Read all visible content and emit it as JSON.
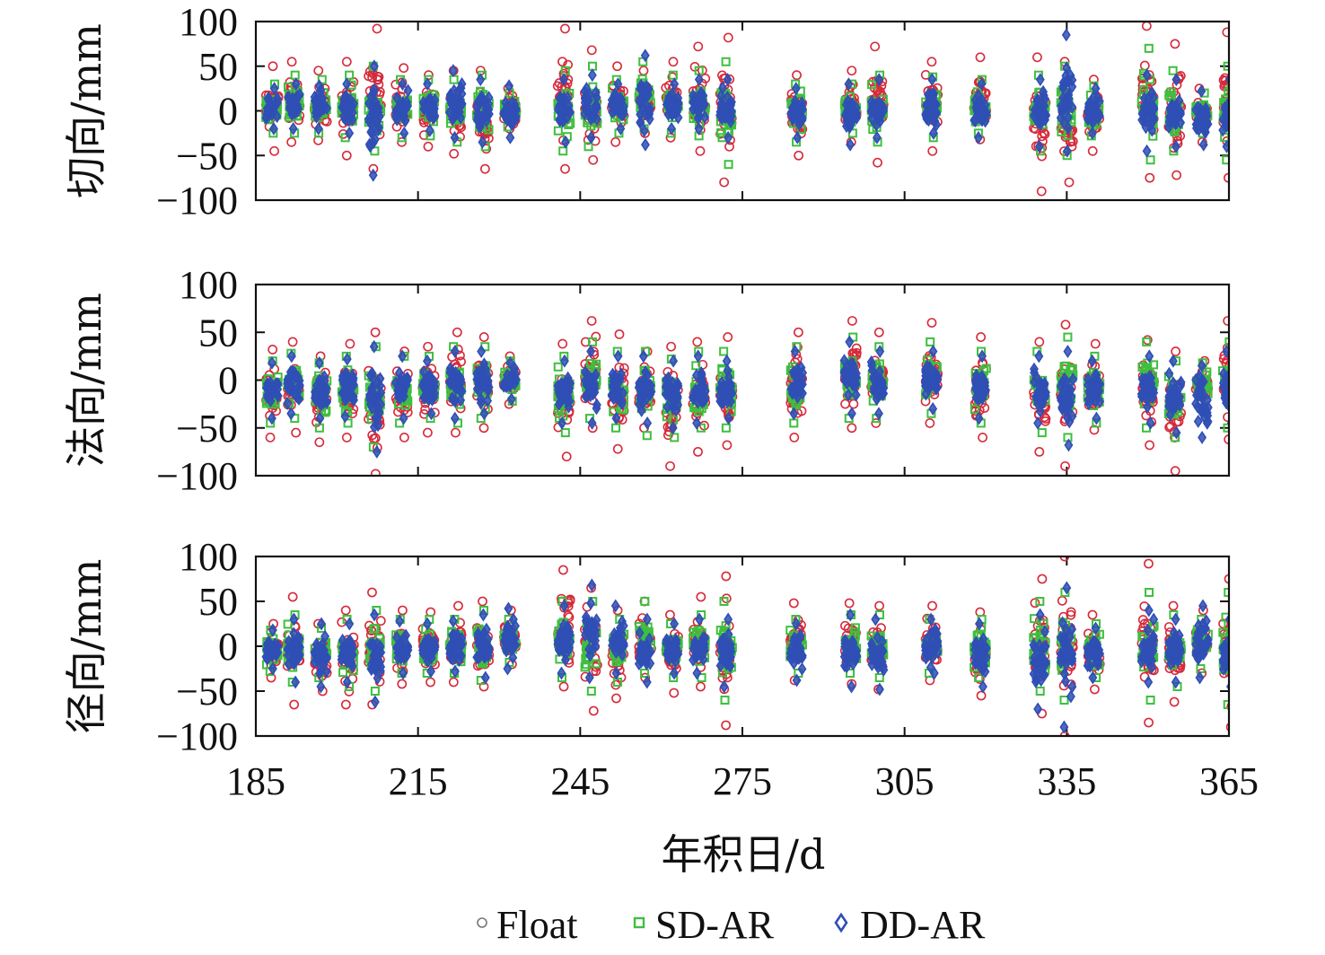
{
  "chart_data": {
    "type": "scatter",
    "xlabel": "年积日/d",
    "xlim": [
      185,
      365
    ],
    "xticks": [
      185,
      215,
      245,
      275,
      305,
      335,
      365
    ],
    "legend": {
      "placement": "bottom",
      "entries": [
        {
          "name": "Float",
          "marker": "circle",
          "color": "#d62a3a"
        },
        {
          "name": "SD-AR",
          "marker": "square",
          "color": "#3fbf3f"
        },
        {
          "name": "DD-AR",
          "marker": "diamond",
          "color": "#2f4fb5"
        }
      ]
    },
    "panels": [
      {
        "ylabel": "切向/mm",
        "ylim": [
          -100,
          100
        ],
        "yticks": [
          -100,
          -50,
          0,
          50,
          100
        ],
        "days": [
          188,
          192,
          197,
          202,
          207,
          212,
          217,
          222,
          227,
          232,
          242,
          247,
          252,
          257,
          262,
          267,
          272,
          285,
          295,
          300,
          310,
          319,
          330,
          335,
          340,
          350,
          355,
          360,
          365
        ],
        "series": [
          {
            "name": "Float",
            "color": "#d62a3a",
            "min": [
              -45,
              -35,
              -33,
              -50,
              -65,
              -35,
              -40,
              -48,
              -65,
              -20,
              -65,
              -55,
              -35,
              -25,
              -30,
              -45,
              -80,
              -50,
              -35,
              -58,
              -45,
              -32,
              -90,
              -80,
              -45,
              -75,
              -72,
              -35,
              -75
            ],
            "max": [
              50,
              55,
              45,
              55,
              92,
              48,
              40,
              45,
              45,
              25,
              92,
              68,
              50,
              45,
              55,
              72,
              82,
              40,
              45,
              72,
              55,
              60,
              60,
              55,
              35,
              95,
              75,
              25,
              88
            ]
          },
          {
            "name": "SD-AR",
            "color": "#3fbf3f",
            "min": [
              -25,
              -25,
              -25,
              -30,
              -45,
              -30,
              -28,
              -35,
              -40,
              -18,
              -45,
              -40,
              -25,
              -20,
              -25,
              -28,
              -60,
              -35,
              -25,
              -35,
              -30,
              -25,
              -45,
              -50,
              -28,
              -55,
              -45,
              -25,
              -55
            ],
            "max": [
              30,
              40,
              35,
              40,
              50,
              35,
              35,
              35,
              40,
              20,
              45,
              50,
              35,
              55,
              40,
              45,
              55,
              30,
              30,
              40,
              38,
              35,
              40,
              50,
              28,
              70,
              45,
              20,
              50
            ]
          },
          {
            "name": "DD-AR",
            "color": "#2f4fb5",
            "min": [
              -20,
              -20,
              -20,
              -25,
              -72,
              -25,
              -22,
              -30,
              -35,
              -30,
              -35,
              -30,
              -20,
              -38,
              -20,
              -20,
              -30,
              -30,
              -38,
              -30,
              -25,
              -30,
              -40,
              -45,
              -25,
              -45,
              -40,
              -38,
              -40
            ],
            "max": [
              25,
              30,
              28,
              30,
              50,
              30,
              30,
              45,
              35,
              28,
              35,
              40,
              30,
              62,
              30,
              35,
              35,
              25,
              30,
              35,
              35,
              30,
              35,
              85,
              25,
              40,
              35,
              22,
              35
            ]
          }
        ]
      },
      {
        "ylabel": "法向/mm",
        "ylim": [
          -100,
          100
        ],
        "yticks": [
          -100,
          -50,
          0,
          50,
          100
        ],
        "days": [
          188,
          192,
          197,
          202,
          207,
          212,
          217,
          222,
          227,
          232,
          242,
          247,
          252,
          257,
          262,
          267,
          272,
          285,
          295,
          300,
          310,
          319,
          330,
          335,
          340,
          350,
          355,
          360,
          365
        ],
        "series": [
          {
            "name": "Float",
            "color": "#d62a3a",
            "min": [
              -60,
              -55,
              -65,
              -60,
              -98,
              -60,
              -55,
              -55,
              -50,
              -25,
              -80,
              -50,
              -72,
              -50,
              -90,
              -75,
              -68,
              -60,
              -50,
              -45,
              -45,
              -60,
              -75,
              -90,
              -52,
              -68,
              -95,
              -30,
              -62
            ],
            "max": [
              32,
              40,
              25,
              38,
              50,
              30,
              35,
              50,
              45,
              25,
              38,
              62,
              48,
              30,
              35,
              40,
              45,
              50,
              62,
              50,
              60,
              45,
              40,
              58,
              38,
              42,
              30,
              20,
              62
            ]
          },
          {
            "name": "SD-AR",
            "color": "#3fbf3f",
            "min": [
              -45,
              -40,
              -50,
              -45,
              -70,
              -45,
              -40,
              -45,
              -40,
              -22,
              -55,
              -40,
              -50,
              -58,
              -60,
              -50,
              -50,
              -45,
              -40,
              -40,
              -35,
              -45,
              -55,
              -60,
              -45,
              -50,
              -60,
              -25,
              -50
            ],
            "max": [
              20,
              28,
              18,
              25,
              35,
              25,
              25,
              35,
              35,
              20,
              25,
              40,
              30,
              30,
              22,
              30,
              30,
              35,
              45,
              35,
              40,
              30,
              30,
              45,
              25,
              40,
              20,
              18,
              40
            ]
          },
          {
            "name": "DD-AR",
            "color": "#2f4fb5",
            "min": [
              -40,
              -35,
              -40,
              -38,
              -75,
              -40,
              -35,
              -40,
              -35,
              -20,
              -45,
              -45,
              -40,
              -45,
              -50,
              -45,
              -40,
              -35,
              -35,
              -35,
              -30,
              -40,
              -45,
              -68,
              -40,
              -45,
              -55,
              -60,
              -45
            ],
            "max": [
              18,
              25,
              18,
              22,
              35,
              25,
              20,
              30,
              30,
              18,
              20,
              30,
              25,
              25,
              20,
              25,
              20,
              30,
              40,
              30,
              30,
              25,
              25,
              30,
              20,
              25,
              20,
              15,
              30
            ]
          }
        ]
      },
      {
        "ylabel": "径向/mm",
        "ylim": [
          -100,
          100
        ],
        "yticks": [
          -100,
          -50,
          0,
          50,
          100
        ],
        "days": [
          188,
          192,
          197,
          202,
          207,
          212,
          217,
          222,
          227,
          232,
          242,
          247,
          252,
          257,
          262,
          267,
          272,
          285,
          295,
          300,
          310,
          319,
          330,
          335,
          340,
          350,
          355,
          360,
          365
        ],
        "series": [
          {
            "name": "Float",
            "color": "#d62a3a",
            "min": [
              -35,
              -65,
              -50,
              -65,
              -65,
              -42,
              -40,
              -40,
              -45,
              -20,
              -45,
              -72,
              -58,
              -35,
              -52,
              -45,
              -88,
              -38,
              -42,
              -48,
              -38,
              -55,
              -75,
              -100,
              -48,
              -85,
              -62,
              -30,
              -90
            ],
            "max": [
              25,
              55,
              25,
              40,
              60,
              40,
              38,
              45,
              50,
              40,
              85,
              65,
              40,
              50,
              35,
              55,
              78,
              48,
              48,
              45,
              45,
              38,
              75,
              100,
              35,
              92,
              45,
              40,
              75
            ]
          },
          {
            "name": "SD-AR",
            "color": "#3fbf3f",
            "min": [
              -28,
              -40,
              -35,
              -45,
              -50,
              -30,
              -30,
              -30,
              -38,
              -18,
              -35,
              -50,
              -40,
              -30,
              -35,
              -35,
              -60,
              -30,
              -30,
              -35,
              -30,
              -35,
              -50,
              -60,
              -35,
              -60,
              -45,
              -25,
              -65
            ],
            "max": [
              18,
              35,
              20,
              30,
              40,
              30,
              30,
              30,
              40,
              30,
              50,
              50,
              30,
              50,
              25,
              35,
              50,
              30,
              35,
              35,
              30,
              30,
              50,
              60,
              25,
              60,
              35,
              30,
              60
            ]
          },
          {
            "name": "DD-AR",
            "color": "#2f4fb5",
            "min": [
              -25,
              -40,
              -45,
              -40,
              -62,
              -30,
              -28,
              -28,
              -35,
              -25,
              -30,
              -35,
              -30,
              -40,
              -30,
              -30,
              -45,
              -38,
              -45,
              -48,
              -30,
              -45,
              -70,
              -90,
              -35,
              -40,
              -40,
              -35,
              -45
            ],
            "max": [
              18,
              30,
              25,
              25,
              35,
              28,
              25,
              28,
              35,
              42,
              45,
              68,
              45,
              30,
              25,
              30,
              30,
              25,
              35,
              30,
              30,
              25,
              35,
              65,
              20,
              40,
              30,
              45,
              30
            ]
          }
        ]
      }
    ]
  }
}
